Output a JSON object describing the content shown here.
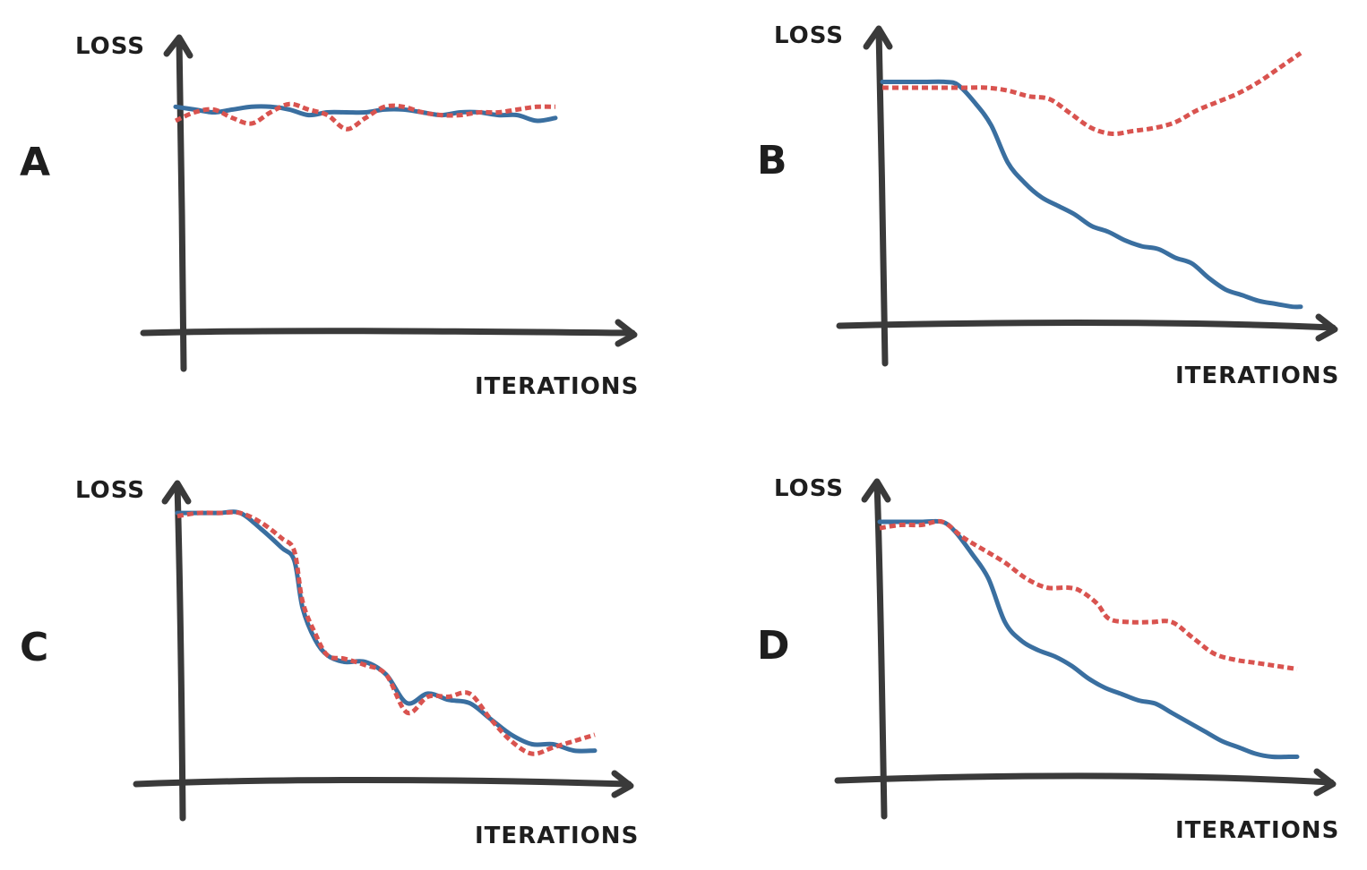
{
  "colors": {
    "axis": "#3a3a3a",
    "text": "#1e1e1e",
    "solid_series": "#3a6fa0",
    "dashed_series": "#d9534f"
  },
  "chart_data": [
    {
      "type": "line",
      "panel": "A",
      "xlabel": "ITERATIONS",
      "ylabel": "LOSS",
      "xlim": [
        0,
        100
      ],
      "ylim": [
        0,
        100
      ],
      "grid": false,
      "series": [
        {
          "style": "solid",
          "color": "#3a6fa0",
          "x": [
            0,
            5,
            10,
            15,
            20,
            25,
            30,
            35,
            40,
            45,
            50,
            55,
            60,
            65,
            70,
            75,
            80,
            85,
            90,
            95,
            100
          ],
          "y": [
            81,
            80,
            79,
            80,
            81,
            81,
            80,
            78,
            79,
            79,
            79,
            80,
            80,
            79,
            78,
            79,
            79,
            78,
            78,
            76,
            77
          ]
        },
        {
          "style": "dashed",
          "color": "#d9534f",
          "x": [
            0,
            5,
            10,
            15,
            20,
            25,
            30,
            35,
            40,
            45,
            50,
            55,
            60,
            65,
            70,
            75,
            80,
            85,
            90,
            95,
            100
          ],
          "y": [
            76,
            79,
            80,
            77,
            75,
            79,
            82,
            80,
            78,
            73,
            77,
            81,
            81,
            79,
            78,
            78,
            79,
            79,
            80,
            81,
            81
          ]
        }
      ]
    },
    {
      "type": "line",
      "panel": "B",
      "xlabel": "ITERATIONS",
      "ylabel": "LOSS",
      "xlim": [
        0,
        100
      ],
      "ylim": [
        0,
        100
      ],
      "grid": false,
      "series": [
        {
          "style": "solid",
          "color": "#3a6fa0",
          "x": [
            0,
            5,
            10,
            15,
            18,
            22,
            26,
            30,
            34,
            38,
            42,
            46,
            50,
            54,
            58,
            62,
            66,
            70,
            74,
            78,
            82,
            86,
            90,
            94,
            98,
            100
          ],
          "y": [
            84,
            84,
            84,
            84,
            83,
            77,
            69,
            56,
            49,
            44,
            41,
            38,
            34,
            32,
            29,
            27,
            26,
            23,
            21,
            16,
            12,
            10,
            8,
            7,
            6,
            6
          ]
        },
        {
          "style": "dashed",
          "color": "#d9534f",
          "x": [
            0,
            5,
            10,
            15,
            20,
            25,
            30,
            35,
            40,
            45,
            50,
            55,
            60,
            65,
            70,
            75,
            80,
            85,
            90,
            95,
            100
          ],
          "y": [
            82,
            82,
            82,
            82,
            82,
            82,
            81,
            79,
            78,
            73,
            68,
            66,
            67,
            68,
            70,
            74,
            77,
            80,
            84,
            89,
            94
          ]
        }
      ]
    },
    {
      "type": "line",
      "panel": "C",
      "xlabel": "ITERATIONS",
      "ylabel": "LOSS",
      "xlim": [
        0,
        100
      ],
      "ylim": [
        0,
        100
      ],
      "grid": false,
      "series": [
        {
          "style": "solid",
          "color": "#3a6fa0",
          "x": [
            0,
            5,
            10,
            15,
            20,
            25,
            28,
            30,
            33,
            36,
            40,
            45,
            50,
            55,
            60,
            65,
            70,
            75,
            80,
            85,
            90,
            95,
            100
          ],
          "y": [
            85,
            85,
            85,
            85,
            80,
            74,
            70,
            55,
            45,
            40,
            38,
            38,
            34,
            25,
            28,
            26,
            25,
            20,
            15,
            12,
            12,
            10,
            10
          ]
        },
        {
          "style": "dashed",
          "color": "#d9534f",
          "x": [
            0,
            5,
            10,
            15,
            20,
            25,
            28,
            30,
            33,
            36,
            40,
            45,
            50,
            55,
            60,
            65,
            70,
            75,
            80,
            85,
            90,
            95,
            100
          ],
          "y": [
            84,
            85,
            85,
            85,
            82,
            77,
            73,
            57,
            47,
            40,
            39,
            37,
            34,
            22,
            27,
            27,
            28,
            20,
            13,
            9,
            11,
            13,
            15
          ]
        }
      ]
    },
    {
      "type": "line",
      "panel": "D",
      "xlabel": "ITERATIONS",
      "ylabel": "LOSS",
      "xlim": [
        0,
        100
      ],
      "ylim": [
        0,
        100
      ],
      "grid": false,
      "series": [
        {
          "style": "solid",
          "color": "#3a6fa0",
          "x": [
            0,
            5,
            10,
            15,
            18,
            22,
            26,
            30,
            34,
            38,
            42,
            46,
            50,
            54,
            58,
            62,
            66,
            70,
            74,
            78,
            82,
            86,
            90,
            94,
            98,
            100
          ],
          "y": [
            82,
            82,
            82,
            82,
            79,
            72,
            64,
            50,
            44,
            41,
            39,
            36,
            32,
            29,
            27,
            25,
            24,
            21,
            18,
            15,
            12,
            10,
            8,
            7,
            7,
            7
          ]
        },
        {
          "style": "dashed",
          "color": "#d9534f",
          "x": [
            0,
            5,
            10,
            15,
            20,
            25,
            30,
            35,
            40,
            45,
            48,
            52,
            55,
            60,
            65,
            70,
            75,
            80,
            85,
            90,
            95,
            100
          ],
          "y": [
            80,
            81,
            81,
            82,
            77,
            73,
            69,
            64,
            61,
            61,
            60,
            56,
            51,
            50,
            50,
            50,
            45,
            40,
            38,
            37,
            36,
            35
          ]
        }
      ]
    }
  ]
}
